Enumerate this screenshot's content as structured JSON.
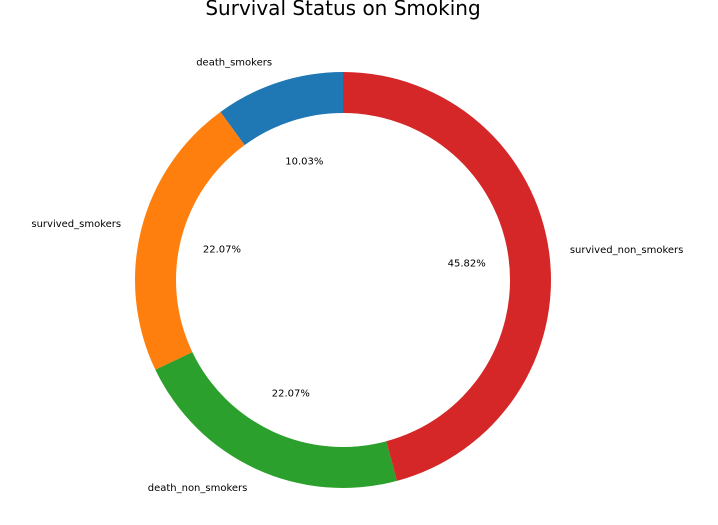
{
  "chart_data": {
    "type": "pie",
    "title": "Survival Status on Smoking",
    "donut": true,
    "start_angle_deg": 90,
    "direction": "counterclockwise",
    "slices": [
      {
        "label": "death_smokers",
        "value": 10.03,
        "pct_text": "10.03%",
        "color": "#1f77b4"
      },
      {
        "label": "survived_smokers",
        "value": 22.07,
        "pct_text": "22.07%",
        "color": "#ff7f0e"
      },
      {
        "label": "death_non_smokers",
        "value": 22.07,
        "pct_text": "22.07%",
        "color": "#2ca02c"
      },
      {
        "label": "survived_non_smokers",
        "value": 45.82,
        "pct_text": "45.82%",
        "color": "#d62728"
      }
    ]
  }
}
